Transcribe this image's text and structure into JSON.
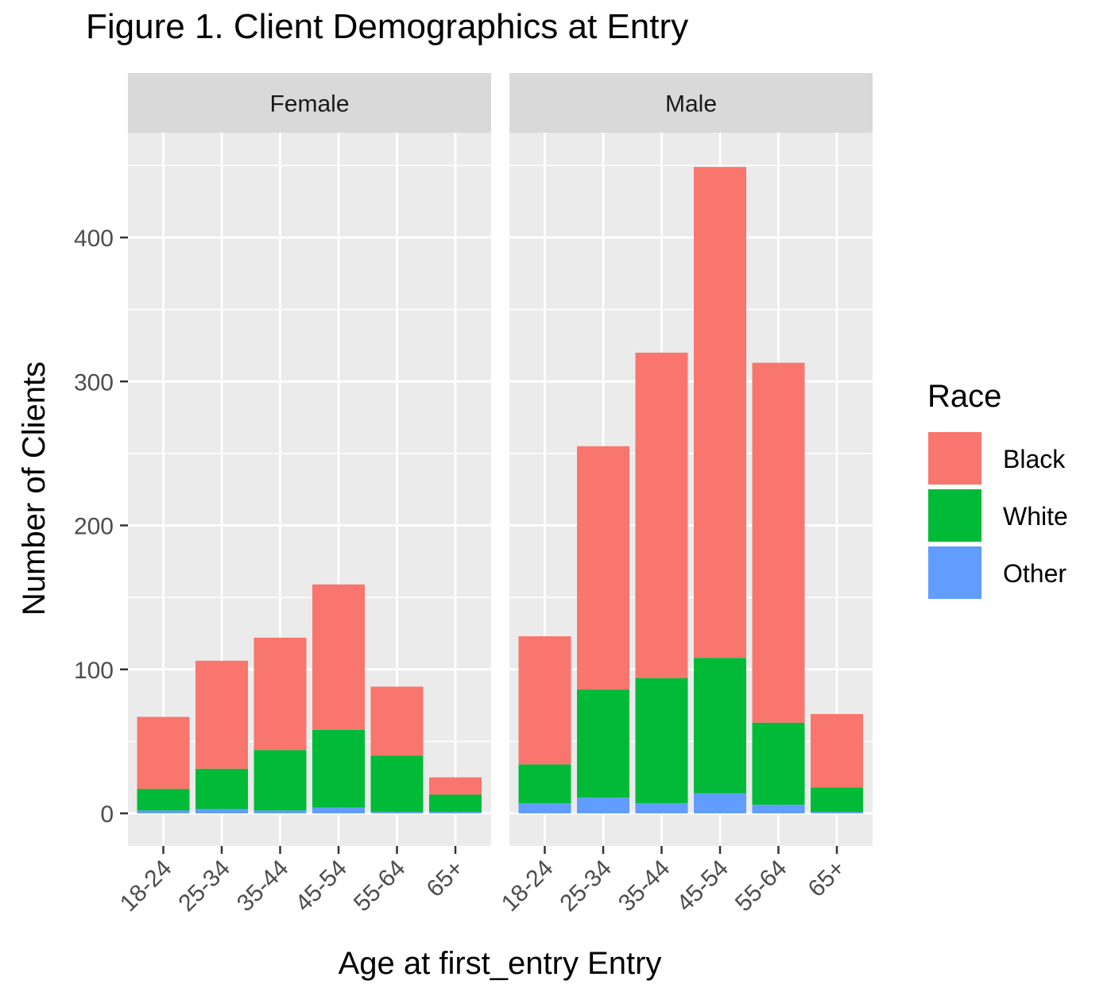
{
  "chart_data": {
    "type": "bar",
    "stacked": true,
    "title": "Figure 1. Client Demographics at Entry",
    "xlabel": "Age at first_entry Entry",
    "ylabel": "Number of Clients",
    "ylim": [
      -22,
      472
    ],
    "yticks": [
      0,
      100,
      200,
      300,
      400
    ],
    "categories": [
      "18-24",
      "25-34",
      "35-44",
      "45-54",
      "55-64",
      "65+"
    ],
    "grid": true,
    "legend": {
      "title": "Race",
      "position": "right",
      "entries": [
        "Black",
        "White",
        "Other"
      ]
    },
    "colors": {
      "Black": "#F8766D",
      "White": "#00BA38",
      "Other": "#619CFF",
      "panel_bg": "#EBEBEB",
      "strip_bg": "#D9D9D9",
      "grid": "#FFFFFF"
    },
    "facets": [
      {
        "label": "Female",
        "series": [
          {
            "name": "Other",
            "values": [
              2,
              3,
              2,
              4,
              1,
              1
            ]
          },
          {
            "name": "White",
            "values": [
              15,
              28,
              42,
              54,
              39,
              12
            ]
          },
          {
            "name": "Black",
            "values": [
              50,
              75,
              78,
              101,
              48,
              12
            ]
          }
        ]
      },
      {
        "label": "Male",
        "series": [
          {
            "name": "Other",
            "values": [
              7,
              11,
              7,
              14,
              6,
              1
            ]
          },
          {
            "name": "White",
            "values": [
              27,
              75,
              87,
              94,
              57,
              17
            ]
          },
          {
            "name": "Black",
            "values": [
              89,
              169,
              226,
              341,
              250,
              51
            ]
          }
        ]
      }
    ]
  }
}
